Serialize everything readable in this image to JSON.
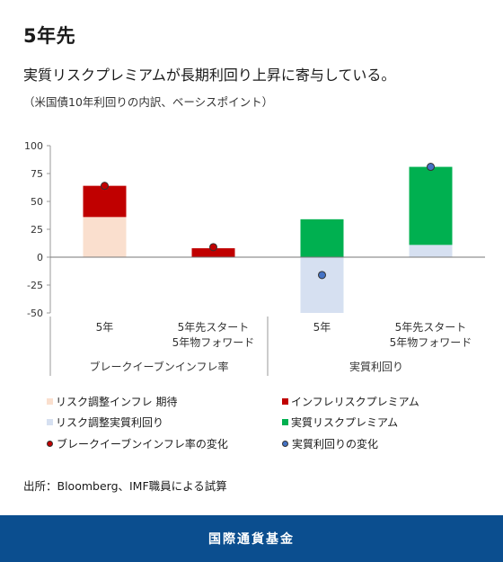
{
  "header": {
    "heading": "5年先",
    "subtitle": "実質リスクプレミアムが長期利回り上昇に寄与している。",
    "note": "（米国債10年利回りの内訳、ベーシスポイント）"
  },
  "source": "出所：Bloomberg、IMF職員による試算",
  "footer": {
    "org": "国際通貨基金"
  },
  "colors": {
    "inflation_expected": "#fadfce",
    "inflation_premium": "#c00000",
    "real_expected": "#d6e0f1",
    "real_premium": "#00b050",
    "breakeven_change": "#c00000",
    "real_change": "#4472c4"
  },
  "chart_data": {
    "type": "bar",
    "stacked": true,
    "ylim": [
      -50,
      100
    ],
    "yticks": [
      -50,
      -25,
      0,
      25,
      50,
      75,
      100
    ],
    "grid": false,
    "groups": [
      {
        "label": "ブレークイーブンインフレ率",
        "categories": [
          0,
          1
        ]
      },
      {
        "label": "実質利回り",
        "categories": [
          2,
          3
        ]
      }
    ],
    "categories": [
      "5年",
      "5年先スタート\n5年物フォワード",
      "5年",
      "5年先スタート\n5年物フォワード"
    ],
    "series": [
      {
        "name": "リスク調整インフレ 期待",
        "kind": "bar",
        "colorKey": "inflation_expected",
        "values": [
          36,
          0,
          null,
          null
        ]
      },
      {
        "name": "インフレリスクプレミアム",
        "kind": "bar",
        "colorKey": "inflation_premium",
        "values": [
          28,
          8,
          null,
          null
        ]
      },
      {
        "name": "リスク調整実質利回り",
        "kind": "bar",
        "colorKey": "real_expected",
        "values": [
          null,
          null,
          -50,
          11
        ]
      },
      {
        "name": "実質リスクプレミアム",
        "kind": "bar",
        "colorKey": "real_premium",
        "values": [
          null,
          null,
          34,
          70
        ]
      },
      {
        "name": "ブレークイーブンインフレ率の変化",
        "kind": "dot",
        "colorKey": "breakeven_change",
        "values": [
          64,
          9,
          null,
          null
        ]
      },
      {
        "name": "実質利回りの変化",
        "kind": "dot",
        "colorKey": "real_change",
        "values": [
          null,
          null,
          -16,
          81
        ]
      }
    ],
    "legend_position": "bottom"
  }
}
